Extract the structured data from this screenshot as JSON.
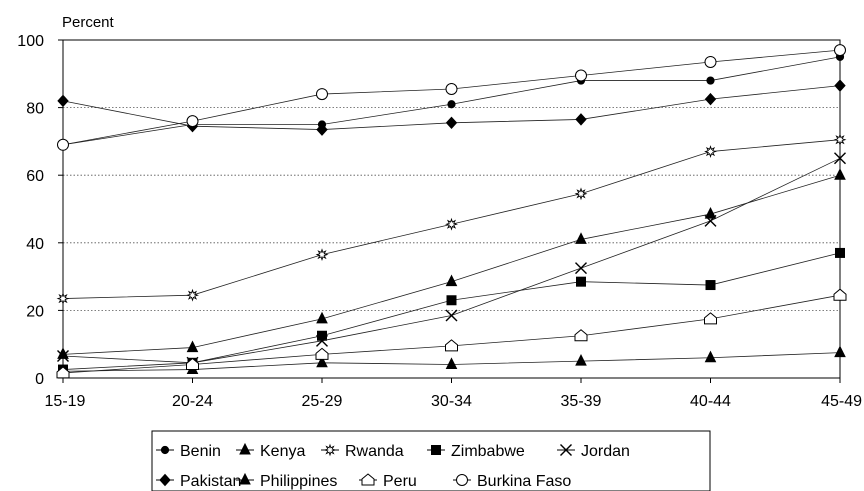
{
  "chart_data": {
    "type": "line",
    "title": "",
    "xlabel": "",
    "ylabel": "Percent",
    "categories": [
      "15-19",
      "20-24",
      "25-29",
      "30-34",
      "35-39",
      "40-44",
      "45-49"
    ],
    "ylim": [
      0,
      100
    ],
    "yticks": [
      0,
      20,
      40,
      60,
      80,
      100
    ],
    "grid": "horizontal dotted",
    "legend_position": "bottom",
    "series": [
      {
        "name": "Benin",
        "marker": "filled-circle",
        "values": [
          69,
          75,
          75,
          81,
          88,
          88,
          95
        ]
      },
      {
        "name": "Kenya",
        "marker": "filled-triangle",
        "values": [
          2,
          2.5,
          4.5,
          4,
          5,
          6,
          7.5
        ]
      },
      {
        "name": "Rwanda",
        "marker": "open-star",
        "values": [
          23.5,
          24.5,
          36.5,
          45.5,
          54.5,
          67,
          70.5
        ]
      },
      {
        "name": "Zimbabwe",
        "marker": "filled-square",
        "values": [
          2.5,
          4.5,
          12.5,
          23,
          28.5,
          27.5,
          37
        ]
      },
      {
        "name": "Jordan",
        "marker": "x",
        "values": [
          6.5,
          4.5,
          11,
          18.5,
          32.5,
          46.5,
          65
        ]
      },
      {
        "name": "Pakistan",
        "marker": "filled-diamond",
        "values": [
          82,
          74.5,
          73.5,
          75.5,
          76.5,
          82.5,
          86.5
        ]
      },
      {
        "name": "Philippines",
        "marker": "filled-triangle",
        "values": [
          7,
          9,
          17.5,
          28.5,
          41,
          48.5,
          60
        ]
      },
      {
        "name": "Peru",
        "marker": "open-pentagon",
        "values": [
          1.5,
          4,
          7,
          9.5,
          12.5,
          17.5,
          24.5
        ]
      },
      {
        "name": "Burkina Faso",
        "marker": "open-circle",
        "values": [
          69,
          76,
          84,
          85.5,
          89.5,
          93.5,
          97
        ]
      }
    ],
    "legend_rows": [
      [
        "Benin",
        "Kenya",
        "Rwanda",
        "Zimbabwe",
        "Jordan"
      ],
      [
        "Pakistan",
        "Philippines",
        "Peru",
        "Burkina Faso"
      ]
    ]
  }
}
